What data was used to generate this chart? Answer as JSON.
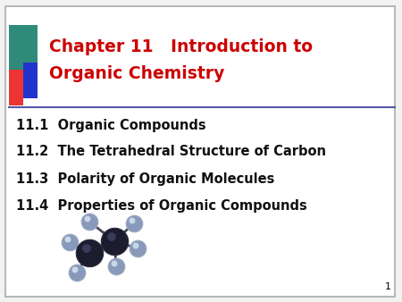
{
  "title_line1": "Chapter 11   Introduction to",
  "title_line2": "Organic Chemistry",
  "title_color": "#CC0000",
  "title_fontsize": 13.5,
  "title_fontweight": "bold",
  "items": [
    "11.1  Organic Compounds",
    "11.2  The Tetrahedral Structure of Carbon",
    "11.3  Polarity of Organic Molecules",
    "11.4  Properties of Organic Compounds"
  ],
  "item_fontsize": 10.5,
  "item_fontweight": "bold",
  "item_color": "#111111",
  "background_color": "#F2F2F2",
  "slide_bg": "#FFFFFF",
  "slide_border_color": "#AAAAAA",
  "page_number": "1",
  "divider_color": "#5555AA",
  "logo_colors": {
    "teal": "#2E8B7A",
    "red": "#EE3333",
    "blue": "#2233CC"
  },
  "molecule_center_color": "#1C1C2E",
  "molecule_atom_color": "#8899BB",
  "molecule_bond_color": "#444455"
}
